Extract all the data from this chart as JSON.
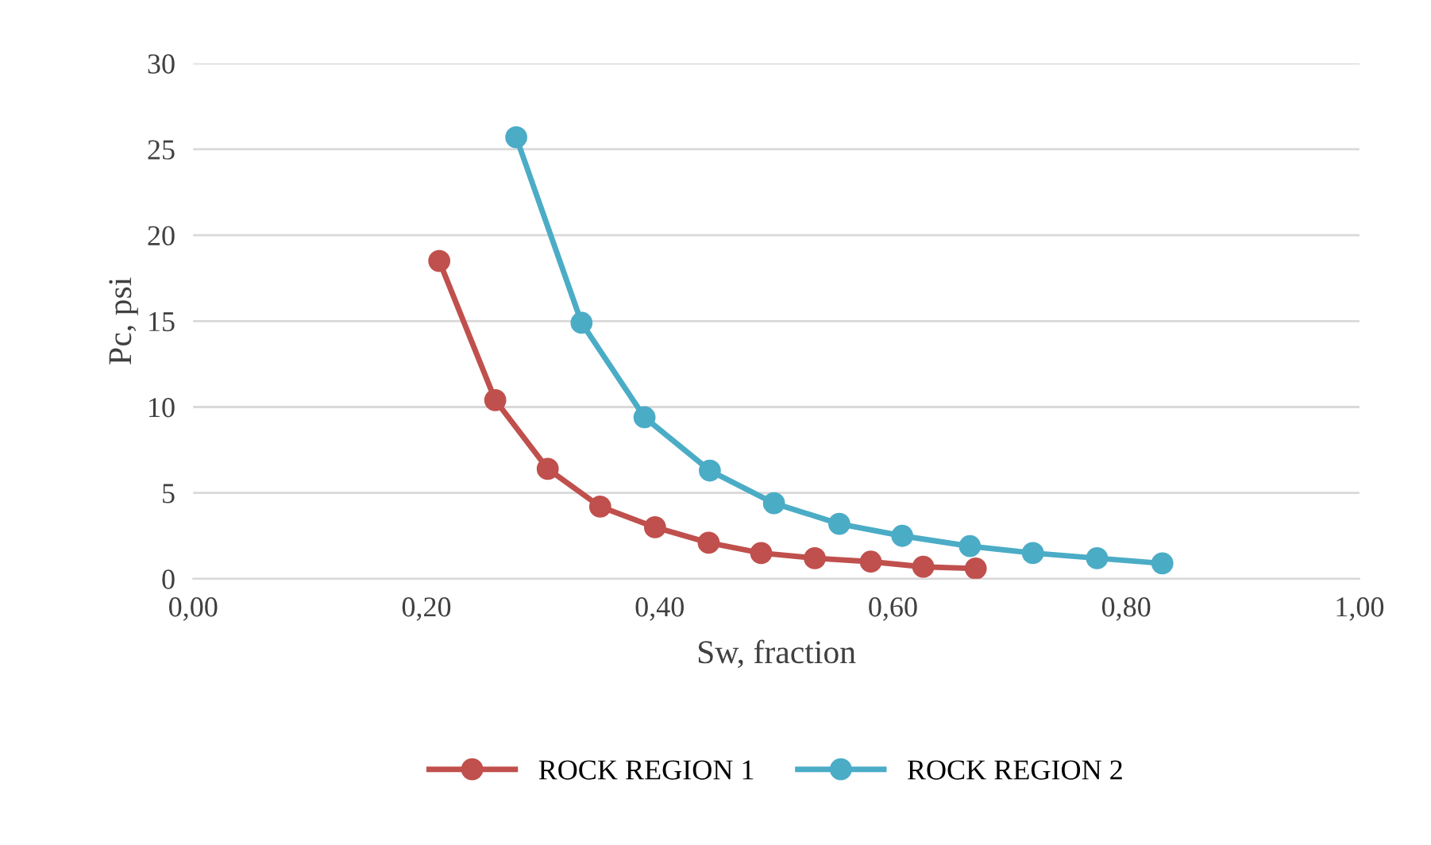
{
  "chart_data": {
    "type": "line",
    "xlabel": "Sw, fraction",
    "ylabel": "Pc, psi",
    "xlim": [
      0,
      1
    ],
    "ylim": [
      0,
      30
    ],
    "xticks": [
      {
        "value": 0,
        "label": "0,00"
      },
      {
        "value": 0.2,
        "label": "0,20"
      },
      {
        "value": 0.4,
        "label": "0,40"
      },
      {
        "value": 0.6,
        "label": "0,60"
      },
      {
        "value": 0.8,
        "label": "0,80"
      },
      {
        "value": 1,
        "label": "1,00"
      }
    ],
    "yticks": [
      0,
      5,
      10,
      15,
      20,
      25,
      30
    ],
    "grid": "y",
    "legend": "bottom",
    "marker": "circle",
    "line_style": "solid",
    "series": [
      {
        "name": "ROCK REGION 1",
        "color": "#c0504d",
        "x": [
          0.211,
          0.259,
          0.304,
          0.349,
          0.396,
          0.442,
          0.487,
          0.533,
          0.581,
          0.626,
          0.671
        ],
        "values": [
          18.5,
          10.4,
          6.4,
          4.2,
          3.0,
          2.1,
          1.5,
          1.2,
          1.0,
          0.7,
          0.6
        ]
      },
      {
        "name": "ROCK REGION 2",
        "color": "#4bacc6",
        "x": [
          0.277,
          0.333,
          0.387,
          0.443,
          0.498,
          0.554,
          0.608,
          0.666,
          0.72,
          0.775,
          0.831
        ],
        "values": [
          25.7,
          14.9,
          9.4,
          6.3,
          4.4,
          3.2,
          2.5,
          1.9,
          1.5,
          1.2,
          0.9
        ]
      }
    ]
  }
}
